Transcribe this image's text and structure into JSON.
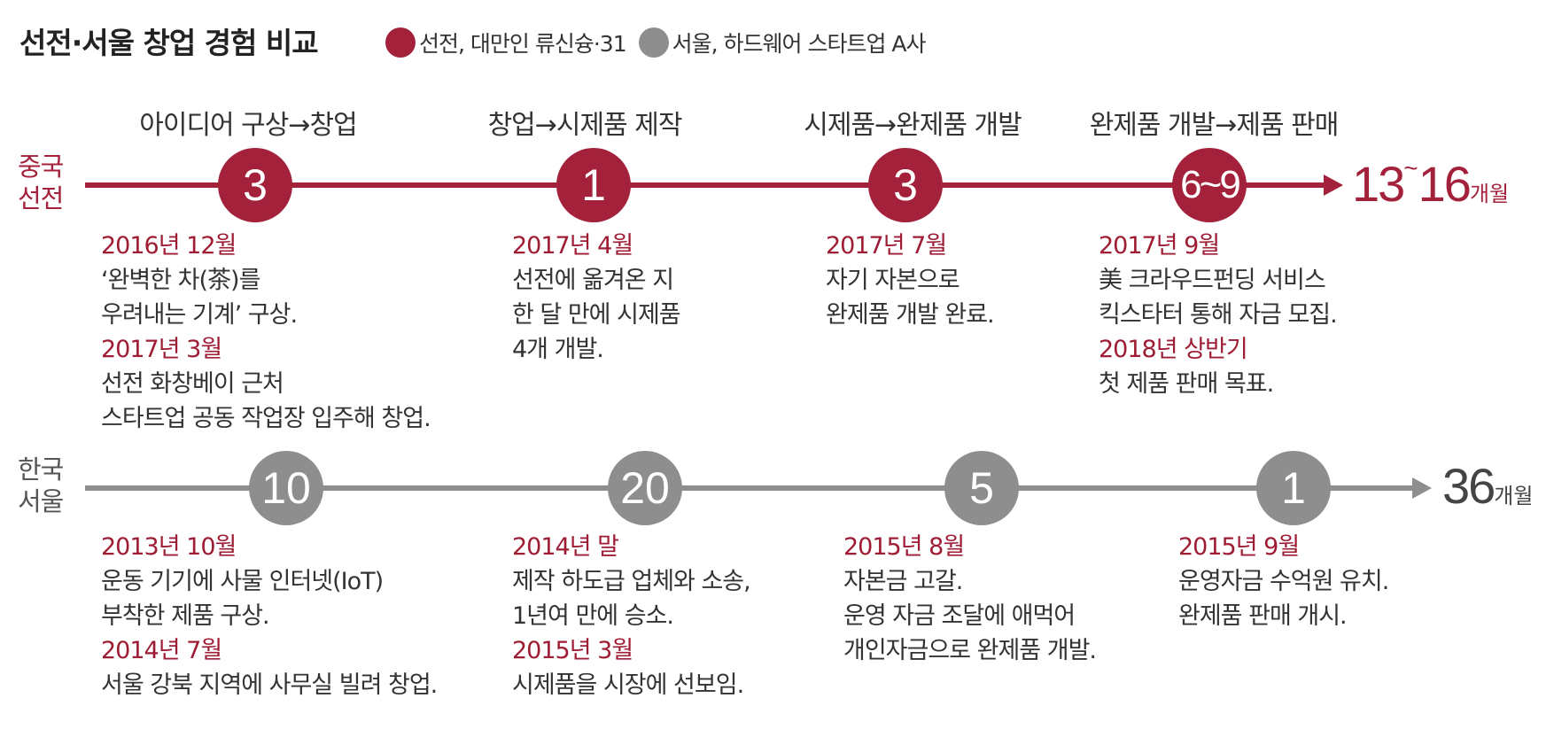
{
  "title": "선전·서울 창업 경험 비교",
  "legend": [
    {
      "label": "선전, 대만인 류신슝·31",
      "color": "#a3213a"
    },
    {
      "label": "서울, 하드웨어 스타트업 A사",
      "color": "#8e8e8e"
    }
  ],
  "phases": [
    "아이디어 구상→창업",
    "창업→시제품 제작",
    "시제품→완제품 개발",
    "완제품 개발→제품 판매"
  ],
  "rows": [
    {
      "label_line1": "중국",
      "label_line2": "선전",
      "color": "#a3213a",
      "milestones": [
        "3",
        "1",
        "3",
        "6~9"
      ],
      "total_low": "13",
      "total_sep": "~",
      "total_high": "16",
      "total_unit": "개월",
      "notes": [
        [
          "2016년 12월",
          "‘완벽한 차(茶)를",
          "우려내는 기계’ 구상.",
          "2017년 3월",
          "선전 화창베이 근처",
          "스타트업 공동 작업장 입주해 창업."
        ],
        [
          "2017년 4월",
          "선전에 옮겨온 지",
          "한 달 만에 시제품",
          "4개 개발."
        ],
        [
          "2017년 7월",
          "자기 자본으로",
          "완제품 개발 완료."
        ],
        [
          "2017년 9월",
          "美 크라우드펀딩 서비스",
          "킥스타터 통해 자금 모집.",
          "2018년 상반기",
          "첫 제품 판매 목표."
        ]
      ]
    },
    {
      "label_line1": "한국",
      "label_line2": "서울",
      "color": "#8e8e8e",
      "milestones": [
        "10",
        "20",
        "5",
        "1"
      ],
      "total": "36",
      "total_unit": "개월",
      "notes": [
        [
          "2013년 10월",
          "운동 기기에 사물 인터넷(IoT)",
          "부착한 제품 구상.",
          "2014년 7월",
          "서울 강북 지역에 사무실 빌려 창업."
        ],
        [
          "2014년 말",
          "제작 하도급 업체와 소송,",
          "1년여 만에 승소.",
          "2015년 3월",
          "시제품을 시장에 선보임."
        ],
        [
          "2015년 8월",
          "자본금 고갈.",
          "운영 자금 조달에 애먹어",
          "개인자금으로 완제품 개발."
        ],
        [
          "2015년 9월",
          "운영자금 수억원 유치.",
          "완제품 판매 개시."
        ]
      ]
    }
  ]
}
